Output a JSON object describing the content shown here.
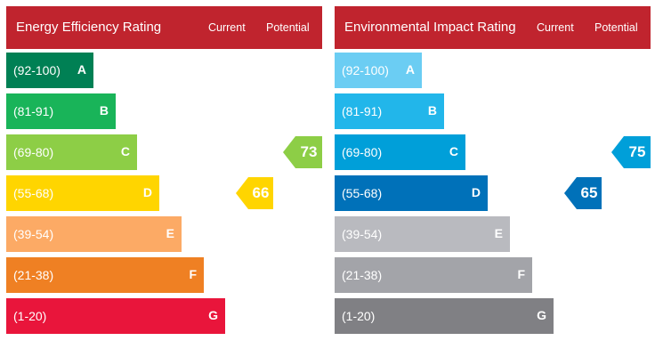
{
  "chart_data": [
    {
      "type": "bar",
      "title": "Energy Efficiency Rating",
      "columns": [
        "Current",
        "Potential"
      ],
      "categories": [
        "(92-100)",
        "(81-91)",
        "(69-80)",
        "(55-68)",
        "(39-54)",
        "(21-38)",
        "(1-20)"
      ],
      "letters": [
        "A",
        "B",
        "C",
        "D",
        "E",
        "F",
        "G"
      ],
      "colors": [
        "#008054",
        "#19b459",
        "#8dce46",
        "#ffd500",
        "#fcaa65",
        "#ef8023",
        "#e9153b"
      ],
      "current": {
        "value": 66,
        "band": "D",
        "color": "#ffd500"
      },
      "potential": {
        "value": 73,
        "band": "C",
        "color": "#8dce46"
      }
    },
    {
      "type": "bar",
      "title": "Environmental Impact Rating",
      "columns": [
        "Current",
        "Potential"
      ],
      "categories": [
        "(92-100)",
        "(81-91)",
        "(69-80)",
        "(55-68)",
        "(39-54)",
        "(21-38)",
        "(1-20)"
      ],
      "letters": [
        "A",
        "B",
        "C",
        "D",
        "E",
        "F",
        "G"
      ],
      "colors": [
        "#6bcdf3",
        "#22b6ea",
        "#009fd9",
        "#0071b9",
        "#b9babf",
        "#a3a4a9",
        "#808084"
      ],
      "current": {
        "value": 65,
        "band": "D",
        "color": "#0071b9"
      },
      "potential": {
        "value": 75,
        "band": "C",
        "color": "#009fd9"
      }
    }
  ]
}
